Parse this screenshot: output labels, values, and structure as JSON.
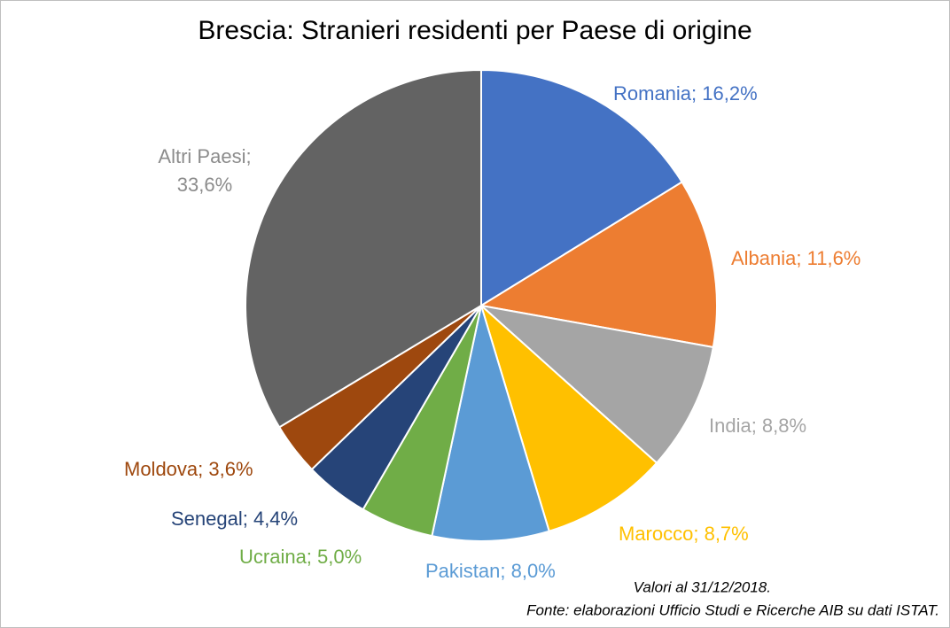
{
  "chart_data": {
    "type": "pie",
    "title": "Brescia: Stranieri residenti per Paese di origine",
    "values": [
      16.2,
      11.6,
      8.8,
      8.7,
      8.0,
      5.0,
      4.4,
      3.6,
      33.6
    ],
    "value_labels": [
      "Romania; 16,2%",
      "Albania; 11,6%",
      "India; 8,8%",
      "Marocco; 8,7%",
      "Pakistan; 8,0%",
      "Ucraina; 5,0%",
      "Senegal; 4,4%",
      "Moldova; 3,6%",
      "Altri Paesi; 33,6%"
    ],
    "colors": [
      "#4472c4",
      "#ed7d31",
      "#a5a5a5",
      "#ffc000",
      "#5b9bd5",
      "#70ad47",
      "#264478",
      "#9e480e",
      "#636363"
    ],
    "notes": [
      "Valori al 31/12/2018.",
      "Fonte: elaborazioni Ufficio Studi e Ricerche AIB su dati ISTAT."
    ]
  }
}
